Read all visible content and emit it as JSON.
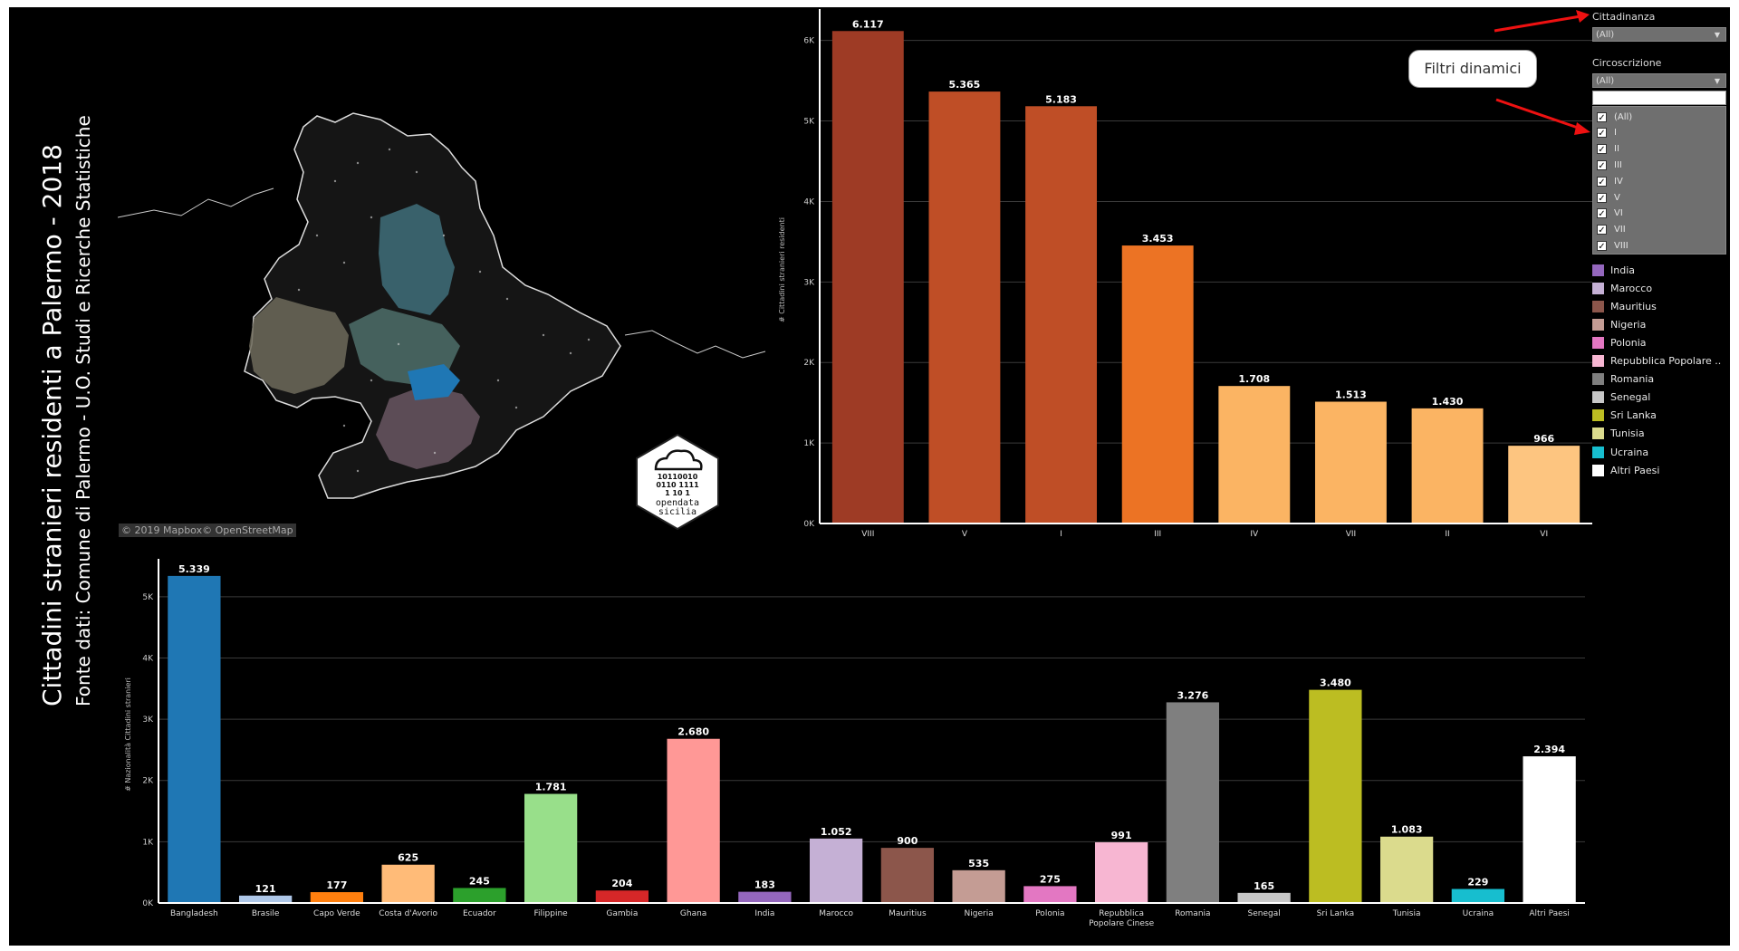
{
  "title": "Cittadini stranieri residenti a Palermo - 2018",
  "subtitle": "Fonte dati: Comune di Palermo - U.O. Studi e Ricerche Statistiche",
  "map": {
    "attribution": "© 2019 Mapbox© OpenStreetMap"
  },
  "logo": {
    "binary_lines": [
      "10110010",
      "0110 1111",
      "1  10 1"
    ],
    "line1": "opendata",
    "line2": "sicilia"
  },
  "filters": {
    "cittadinanza": {
      "label": "Cittadinanza",
      "selected": "(All)"
    },
    "circoscrizione": {
      "label": "Circoscrizione",
      "selected": "(All)",
      "options": [
        "(All)",
        "I",
        "II",
        "III",
        "IV",
        "V",
        "VI",
        "VII",
        "VIII"
      ]
    }
  },
  "callout": "Filtri dinamici",
  "legend": [
    {
      "label": "India",
      "color": "#9467bd"
    },
    {
      "label": "Marocco",
      "color": "#c5b0d5"
    },
    {
      "label": "Mauritius",
      "color": "#8c564b"
    },
    {
      "label": "Nigeria",
      "color": "#c49c94"
    },
    {
      "label": "Polonia",
      "color": "#e377c2"
    },
    {
      "label": "Repubblica Popolare ..",
      "color": "#f7b6d2"
    },
    {
      "label": "Romania",
      "color": "#7f7f7f"
    },
    {
      "label": "Senegal",
      "color": "#c7c7c7"
    },
    {
      "label": "Sri Lanka",
      "color": "#bcbd22"
    },
    {
      "label": "Tunisia",
      "color": "#dbdb8d"
    },
    {
      "label": "Ucraina",
      "color": "#17becf"
    },
    {
      "label": "Altri Paesi",
      "color": "#ffffff"
    }
  ],
  "chart_data": [
    {
      "type": "bar",
      "ylabel": "# Cittadini stranieri residenti",
      "categories": [
        "VIII",
        "V",
        "I",
        "III",
        "IV",
        "VII",
        "II",
        "VI"
      ],
      "values": [
        6117,
        5365,
        5183,
        3453,
        1708,
        1513,
        1430,
        966
      ],
      "value_labels": [
        "6.117",
        "5.365",
        "5.183",
        "3.453",
        "1.708",
        "1.513",
        "1.430",
        "966"
      ],
      "colors": [
        "#9e3b25",
        "#bf4e26",
        "#bf4e26",
        "#ec7324",
        "#fbb463",
        "#fbb463",
        "#fbb463",
        "#fdc580"
      ],
      "ylim": [
        0,
        6300
      ],
      "yticks": [
        0,
        1000,
        2000,
        3000,
        4000,
        5000,
        6000
      ],
      "ytick_labels": [
        "0K",
        "1K",
        "2K",
        "3K",
        "4K",
        "5K",
        "6K"
      ],
      "grid": true
    },
    {
      "type": "bar",
      "ylabel": "# Nazionalità Cittadini stranieri",
      "categories": [
        "Bangladesh",
        "Brasile",
        "Capo Verde",
        "Costa d'Avorio",
        "Ecuador",
        "Filippine",
        "Gambia",
        "Ghana",
        "India",
        "Marocco",
        "Mauritius",
        "Nigeria",
        "Polonia",
        "Repubblica Popolare Cinese",
        "Romania",
        "Senegal",
        "Sri Lanka",
        "Tunisia",
        "Ucraina",
        "Altri Paesi"
      ],
      "category_lines": [
        [
          "Bangladesh"
        ],
        [
          "Brasile"
        ],
        [
          "Capo Verde"
        ],
        [
          "Costa d'Avorio"
        ],
        [
          "Ecuador"
        ],
        [
          "Filippine"
        ],
        [
          "Gambia"
        ],
        [
          "Ghana"
        ],
        [
          "India"
        ],
        [
          "Marocco"
        ],
        [
          "Mauritius"
        ],
        [
          "Nigeria"
        ],
        [
          "Polonia"
        ],
        [
          "Repubblica",
          "Popolare Cinese"
        ],
        [
          "Romania"
        ],
        [
          "Senegal"
        ],
        [
          "Sri Lanka"
        ],
        [
          "Tunisia"
        ],
        [
          "Ucraina"
        ],
        [
          "Altri Paesi"
        ]
      ],
      "values": [
        5339,
        121,
        177,
        625,
        245,
        1781,
        204,
        2680,
        183,
        1052,
        900,
        535,
        275,
        991,
        3276,
        165,
        3480,
        1083,
        229,
        2394
      ],
      "value_labels": [
        "5.339",
        "121",
        "177",
        "625",
        "245",
        "1.781",
        "204",
        "2.680",
        "183",
        "1.052",
        "900",
        "535",
        "275",
        "991",
        "3.276",
        "165",
        "3.480",
        "1.083",
        "229",
        "2.394"
      ],
      "colors": [
        "#1f77b4",
        "#aec7e8",
        "#ff7f0e",
        "#ffbb78",
        "#2ca02c",
        "#98df8a",
        "#d62728",
        "#ff9896",
        "#9467bd",
        "#c5b0d5",
        "#8c564b",
        "#c49c94",
        "#e377c2",
        "#f7b6d2",
        "#7f7f7f",
        "#c7c7c7",
        "#bcbd22",
        "#dbdb8d",
        "#17becf",
        "#ffffff"
      ],
      "ylim": [
        0,
        5500
      ],
      "yticks": [
        0,
        1000,
        2000,
        3000,
        4000,
        5000
      ],
      "ytick_labels": [
        "0K",
        "1K",
        "2K",
        "3K",
        "4K",
        "5K"
      ],
      "grid": true
    }
  ]
}
